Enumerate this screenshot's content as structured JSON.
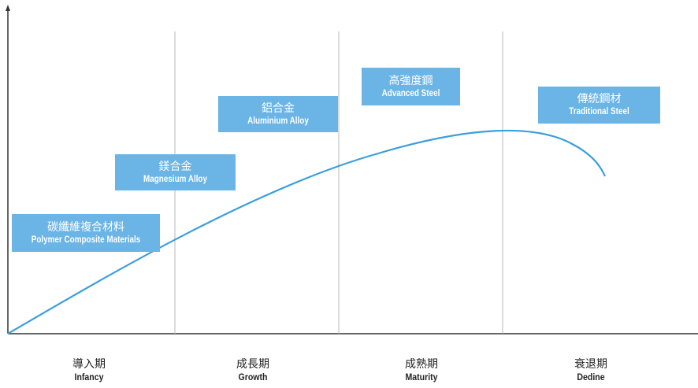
{
  "colors": {
    "accent": "#6ab4e6",
    "curve": "#3a9fdc",
    "axis": "#333333",
    "divider": "#b9b9b9"
  },
  "materials": [
    {
      "zh": "碳纖維複合材料",
      "en": "Polymer Composite Materials"
    },
    {
      "zh": "鎂合金",
      "en": "Magnesium Alloy"
    },
    {
      "zh": "鋁合金",
      "en": "Aluminium Alloy"
    },
    {
      "zh": "高強度鋼",
      "en": "Advanced Steel"
    },
    {
      "zh": "傳統鋼材",
      "en": "Traditional Steel"
    }
  ],
  "stages": [
    {
      "zh": "導入期",
      "en": "Infancy"
    },
    {
      "zh": "成長期",
      "en": "Growth"
    },
    {
      "zh": "成熟期",
      "en": "Maturity"
    },
    {
      "zh": "衰退期",
      "en": "Dedine"
    }
  ]
}
